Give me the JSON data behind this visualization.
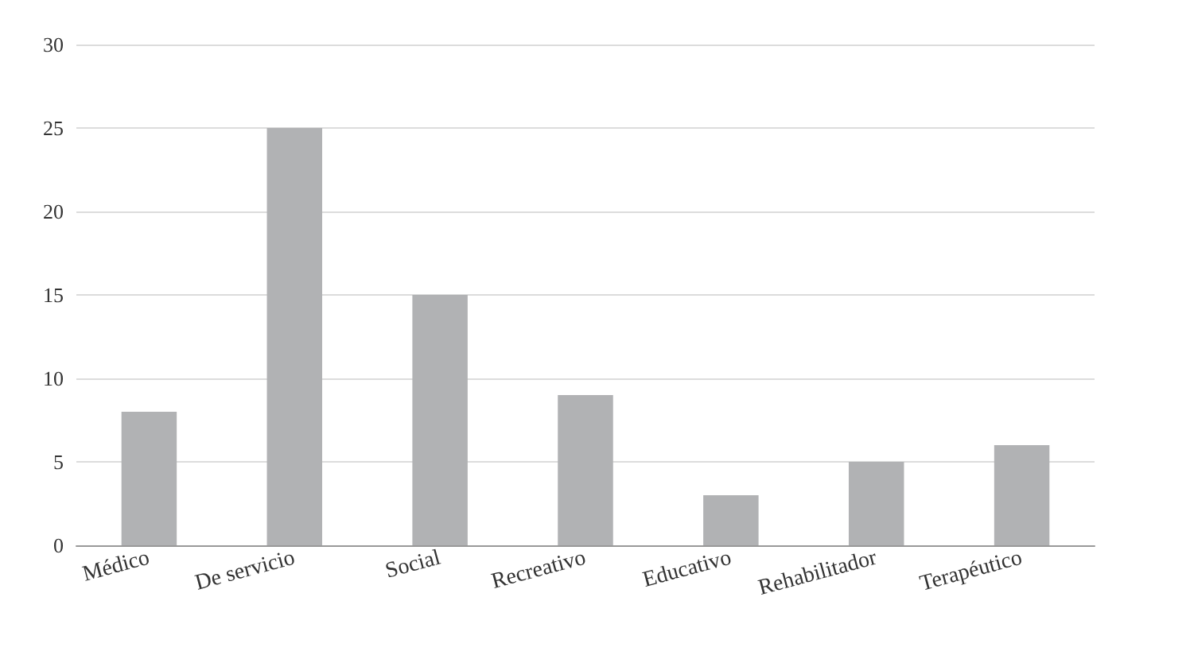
{
  "chart_data": {
    "type": "bar",
    "categories": [
      "Médico",
      "De servicio",
      "Social",
      "Recreativo",
      "Educativo",
      "Rehabilitador",
      "Terapéutico"
    ],
    "values": [
      8,
      25,
      15,
      9,
      3,
      5,
      6
    ],
    "color": "#b1b2b4",
    "ylim": [
      0,
      30
    ],
    "yticks": [
      0,
      5,
      10,
      15,
      20,
      25,
      30
    ],
    "grid": "y"
  }
}
